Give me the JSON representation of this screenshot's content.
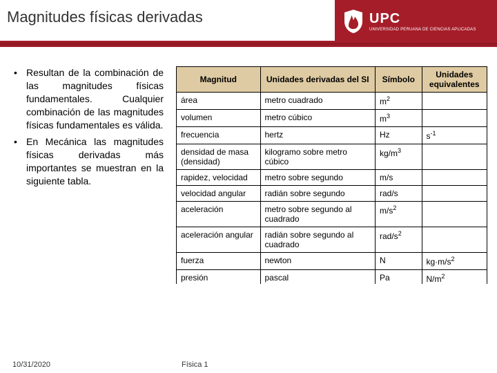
{
  "header": {
    "title": "Magnitudes físicas derivadas",
    "logo": {
      "acronym": "UPC",
      "subtitle": "UNIVERSIDAD PERUANA DE CIENCIAS APLICADAS"
    }
  },
  "bullets": [
    "Resultan de la combinación de las magnitudes físicas fundamentales. Cualquier combinación de las magnitudes físicas fundamentales es válida.",
    "En Mecánica las magnitudes físicas derivadas más importantes se muestran en la siguiente tabla."
  ],
  "table": {
    "headers": [
      "Magnitud",
      "Unidades derivadas del SI",
      "Símbolo",
      "Unidades equivalentes"
    ],
    "header_bg": "#dfcba3",
    "rows": [
      {
        "cells": [
          "área",
          "metro cuadrado",
          "m<sup>2</sup>",
          ""
        ]
      },
      {
        "cells": [
          "volumen",
          "metro cúbico",
          "m<sup>3</sup>",
          ""
        ]
      },
      {
        "cells": [
          "frecuencia",
          "hertz",
          "Hz",
          "s<sup>-1</sup>"
        ]
      },
      {
        "cells": [
          "densidad de masa (densidad)",
          "kilogramo sobre metro cúbico",
          "kg/m<sup>3</sup>",
          ""
        ]
      },
      {
        "cells": [
          "rapidez, velocidad",
          "metro sobre segundo",
          "m/s",
          ""
        ]
      },
      {
        "cells": [
          "velocidad angular",
          "radián sobre segundo",
          "rad/s",
          ""
        ]
      },
      {
        "cells": [
          "aceleración",
          "metro sobre segundo al cuadrado",
          "m/s<sup>2</sup>",
          ""
        ]
      },
      {
        "cells": [
          "aceleración angular",
          "radián sobre segundo al cuadrado",
          "rad/s<sup>2</sup>",
          ""
        ]
      },
      {
        "cells": [
          "fuerza",
          "newton",
          "N",
          "kg·m/s<sup>2</sup>"
        ]
      },
      {
        "cells": [
          "presión",
          "pascal",
          "Pa",
          "N/m<sup>2</sup>"
        ],
        "cutoff": true
      }
    ]
  },
  "footer": {
    "date": "10/31/2020",
    "center": "Física 1"
  },
  "colors": {
    "brand_red": "#a61d2a"
  }
}
